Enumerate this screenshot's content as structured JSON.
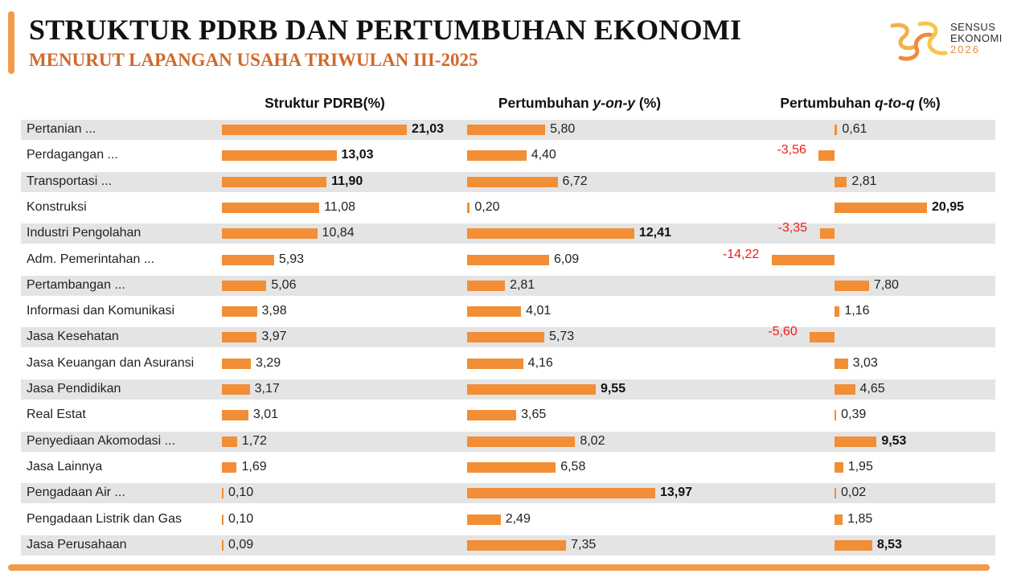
{
  "header": {
    "title": "STRUKTUR PDRB DAN PERTUMBUHAN EKONOMI",
    "subtitle": "MENURUT LAPANGAN USAHA TRIWULAN III-2025"
  },
  "logo": {
    "line1": "SENSUS",
    "line2": "EKONOMI",
    "line3": "2026",
    "icon": "sensus-ekonomi-logo-icon"
  },
  "colors": {
    "bar": "#f28e36",
    "accent": "#f39a4a",
    "subtitle": "#d0692b",
    "negative_value": "#ee1c1c",
    "row_shade": "#e4e4e4"
  },
  "chart_data": {
    "type": "bar",
    "orientation": "horizontal",
    "categories": [
      "Pertanian ...",
      "Perdagangan ...",
      "Transportasi ...",
      "Konstruksi",
      "Industri Pengolahan",
      "Adm. Pemerintahan ...",
      "Pertambangan ...",
      "Informasi dan Komunikasi",
      "Jasa Kesehatan",
      "Jasa Keuangan dan Asuransi",
      "Jasa Pendidikan",
      "Real Estat",
      "Penyediaan Akomodasi ...",
      "Jasa Lainnya",
      "Pengadaan Air ...",
      "Pengadaan Listrik dan Gas",
      "Jasa Perusahaan"
    ],
    "panels": [
      {
        "title": "Struktur PDRB(%)",
        "values": [
          21.03,
          13.03,
          11.9,
          11.08,
          10.84,
          5.93,
          5.06,
          3.98,
          3.97,
          3.29,
          3.17,
          3.01,
          1.72,
          1.69,
          0.1,
          0.1,
          0.09
        ],
        "labels": [
          "21,03",
          "13,03",
          "11,90",
          "11,08",
          "10,84",
          "5,93",
          "5,06",
          "3,98",
          "3,97",
          "3,29",
          "3,17",
          "3,01",
          "1,72",
          "1,69",
          "0,10",
          "0,10",
          "0,09"
        ],
        "bold": [
          true,
          true,
          true,
          false,
          false,
          false,
          false,
          false,
          false,
          false,
          false,
          false,
          false,
          false,
          false,
          false,
          false
        ]
      },
      {
        "title_pre": "Pertumbuhan ",
        "title_em": "y-on-y",
        "title_post": " (%)",
        "values": [
          5.8,
          4.4,
          6.72,
          0.2,
          12.41,
          6.09,
          2.81,
          4.01,
          5.73,
          4.16,
          9.55,
          3.65,
          8.02,
          6.58,
          13.97,
          2.49,
          7.35
        ],
        "labels": [
          "5,80",
          "4,40",
          "6,72",
          "0,20",
          "12,41",
          "6,09",
          "2,81",
          "4,01",
          "5,73",
          "4,16",
          "9,55",
          "3,65",
          "8,02",
          "6,58",
          "13,97",
          "2,49",
          "7,35"
        ],
        "bold": [
          false,
          false,
          false,
          false,
          true,
          false,
          false,
          false,
          false,
          false,
          true,
          false,
          false,
          false,
          true,
          false,
          false
        ]
      },
      {
        "title_pre": "Pertumbuhan ",
        "title_em": "q-to-q",
        "title_post": " (%)",
        "values": [
          0.61,
          -3.56,
          2.81,
          20.95,
          -3.35,
          -14.22,
          7.8,
          1.16,
          -5.6,
          3.03,
          4.65,
          0.39,
          9.53,
          1.95,
          0.02,
          1.85,
          8.53
        ],
        "labels": [
          "0,61",
          "-3,56",
          "2,81",
          "20,95",
          "-3,35",
          "-14,22",
          "7,80",
          "1,16",
          "-5,60",
          "3,03",
          "4,65",
          "0,39",
          "9,53",
          "1,95",
          "0,02",
          "1,85",
          "8,53"
        ],
        "bold": [
          false,
          false,
          false,
          true,
          false,
          false,
          false,
          false,
          false,
          false,
          false,
          false,
          true,
          false,
          false,
          false,
          true
        ]
      }
    ]
  }
}
